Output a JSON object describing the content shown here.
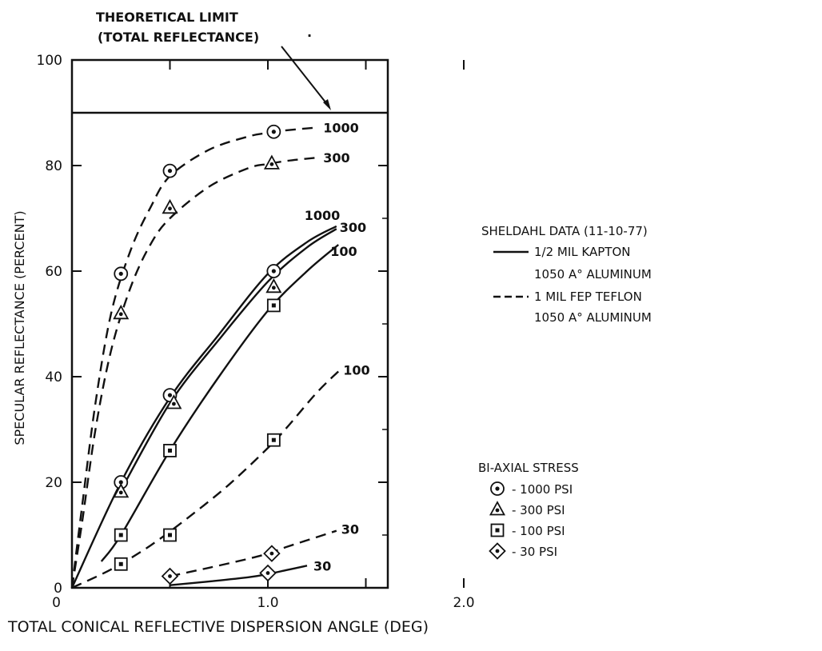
{
  "chart_data": {
    "type": "line",
    "title": "",
    "xlabel": "TOTAL CONICAL REFLECTIVE DISPERSION ANGLE (DEG)",
    "ylabel": "SPECULAR REFLECTANCE (PERCENT)",
    "xlim": [
      0,
      2.0
    ],
    "ylim": [
      0,
      100
    ],
    "x_ticks": [
      {
        "value": 1.0,
        "label": "1.0"
      },
      {
        "value": 2.0,
        "label": "2.0"
      }
    ],
    "y_ticks": [
      {
        "value": 0,
        "label": "0"
      },
      {
        "value": 20,
        "label": "20"
      },
      {
        "value": 40,
        "label": "40"
      },
      {
        "value": 60,
        "label": "60"
      },
      {
        "value": 80,
        "label": "80"
      },
      {
        "value": 100,
        "label": "100"
      }
    ],
    "limit": {
      "value": 90,
      "label_lines": [
        "THEORETICAL LIMIT",
        "(TOTAL REFLECTANCE)"
      ]
    },
    "series": [
      {
        "material": "teflon",
        "stress": "1000",
        "end_label": "1000",
        "marker": "circle",
        "curve": [
          [
            0.0,
            0
          ],
          [
            0.05,
            15
          ],
          [
            0.12,
            35
          ],
          [
            0.2,
            52
          ],
          [
            0.3,
            64
          ],
          [
            0.4,
            72
          ],
          [
            0.5,
            78
          ],
          [
            0.7,
            83
          ],
          [
            0.9,
            85.5
          ],
          [
            1.0,
            86.2
          ],
          [
            1.1,
            86.7
          ],
          [
            1.25,
            87.2
          ]
        ],
        "points": [
          [
            0.25,
            59.5
          ],
          [
            0.5,
            79
          ],
          [
            1.03,
            86.4
          ]
        ]
      },
      {
        "material": "teflon",
        "stress": "300",
        "end_label": "300",
        "marker": "triangle",
        "curve": [
          [
            0.0,
            0
          ],
          [
            0.05,
            12
          ],
          [
            0.12,
            30
          ],
          [
            0.2,
            45
          ],
          [
            0.3,
            57
          ],
          [
            0.4,
            65
          ],
          [
            0.5,
            70
          ],
          [
            0.7,
            76
          ],
          [
            0.9,
            79.5
          ],
          [
            1.0,
            80.3
          ],
          [
            1.1,
            80.9
          ],
          [
            1.25,
            81.5
          ]
        ],
        "points": [
          [
            0.25,
            52
          ],
          [
            0.5,
            72
          ],
          [
            1.02,
            80.4
          ]
        ]
      },
      {
        "material": "teflon",
        "stress": "100",
        "end_label": "100",
        "marker": "square",
        "curve": [
          [
            0.0,
            0
          ],
          [
            0.2,
            3.5
          ],
          [
            0.4,
            8
          ],
          [
            0.6,
            13.5
          ],
          [
            0.8,
            19.5
          ],
          [
            1.0,
            26.5
          ],
          [
            1.1,
            30.5
          ],
          [
            1.25,
            37
          ],
          [
            1.36,
            41
          ]
        ],
        "points": [
          [
            0.25,
            4.5
          ],
          [
            0.5,
            10
          ],
          [
            1.03,
            28
          ]
        ]
      },
      {
        "material": "teflon",
        "stress": "30",
        "end_label": "30",
        "marker": "diamond",
        "curve": [
          [
            0.5,
            2.2
          ],
          [
            0.7,
            3.8
          ],
          [
            0.9,
            5.5
          ],
          [
            1.0,
            6.5
          ],
          [
            1.1,
            7.8
          ],
          [
            1.25,
            9.6
          ],
          [
            1.35,
            10.8
          ]
        ],
        "points": [
          [
            0.5,
            2.2
          ],
          [
            1.02,
            6.5
          ]
        ]
      },
      {
        "material": "kapton",
        "stress": "1000",
        "end_label": "1000",
        "marker": "circle",
        "curve": [
          [
            0.0,
            0
          ],
          [
            0.25,
            20
          ],
          [
            0.5,
            36
          ],
          [
            0.75,
            48
          ],
          [
            1.0,
            59.5
          ],
          [
            1.2,
            65.5
          ],
          [
            1.35,
            68.5
          ]
        ],
        "points": [
          [
            0.25,
            20
          ],
          [
            0.5,
            36.5
          ],
          [
            1.03,
            60
          ]
        ]
      },
      {
        "material": "kapton",
        "stress": "300",
        "end_label": "300",
        "marker": "triangle",
        "curve": [
          [
            0.25,
            18.5
          ],
          [
            0.5,
            35
          ],
          [
            0.75,
            47
          ],
          [
            1.0,
            58
          ],
          [
            1.2,
            64.5
          ],
          [
            1.35,
            68
          ]
        ],
        "points": [
          [
            0.25,
            18.2
          ],
          [
            0.52,
            35
          ],
          [
            1.03,
            57
          ]
        ]
      },
      {
        "material": "kapton",
        "stress": "100",
        "end_label": "100",
        "marker": "square",
        "curve": [
          [
            0.15,
            5
          ],
          [
            0.25,
            10
          ],
          [
            0.5,
            26
          ],
          [
            0.75,
            40
          ],
          [
            1.0,
            52.5
          ],
          [
            1.2,
            60
          ],
          [
            1.36,
            65
          ]
        ],
        "points": [
          [
            0.25,
            10
          ],
          [
            0.5,
            26
          ],
          [
            1.03,
            53.5
          ]
        ]
      },
      {
        "material": "kapton",
        "stress": "30",
        "end_label": "30",
        "marker": "diamond",
        "curve": [
          [
            0.5,
            0.5
          ],
          [
            0.7,
            1.2
          ],
          [
            0.9,
            2
          ],
          [
            1.0,
            2.6
          ],
          [
            1.1,
            3.4
          ],
          [
            1.2,
            4.2
          ]
        ],
        "points": [
          [
            1.0,
            2.8
          ]
        ]
      }
    ],
    "legend_material": {
      "title": "SHELDAHL DATA (11-10-77)",
      "items": [
        {
          "style": "solid",
          "line1": "1/2 MIL KAPTON",
          "line2": "1050 A° ALUMINUM"
        },
        {
          "style": "dashed",
          "line1": "1 MIL FEP TEFLON",
          "line2": "1050 A° ALUMINUM"
        }
      ]
    },
    "legend_stress": {
      "title": "BI-AXIAL STRESS",
      "items": [
        {
          "marker": "circle",
          "label": "- 1000 PSI"
        },
        {
          "marker": "triangle",
          "label": "- 300 PSI"
        },
        {
          "marker": "square",
          "label": "- 100 PSI"
        },
        {
          "marker": "diamond",
          "label": "- 30 PSI"
        }
      ]
    },
    "grid": false,
    "legend_position": "right"
  }
}
